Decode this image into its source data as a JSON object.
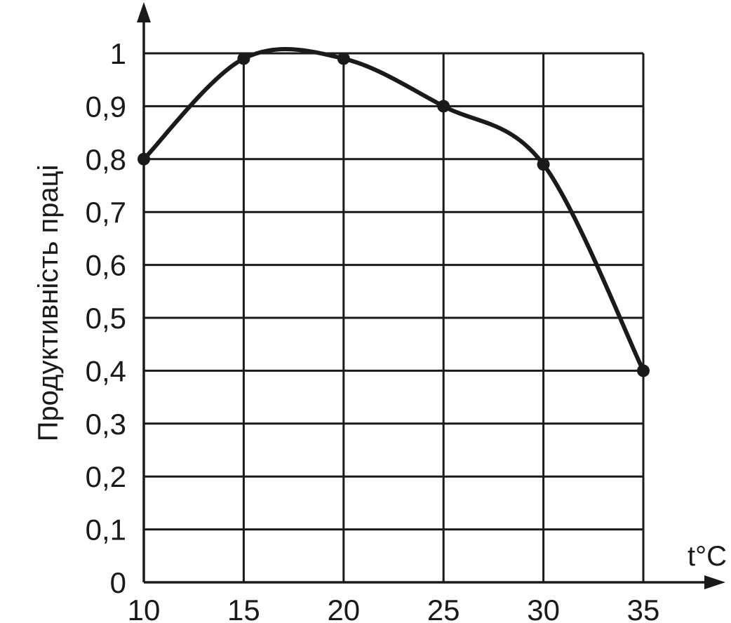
{
  "chart_data": {
    "type": "line",
    "title": "",
    "xlabel": "t°C",
    "ylabel": "Продуктивність праці",
    "x_ticks": [
      "10",
      "15",
      "20",
      "25",
      "30",
      "35"
    ],
    "y_ticks": [
      "0",
      "0,1",
      "0,2",
      "0,3",
      "0,4",
      "0,5",
      "0,6",
      "0,7",
      "0,8",
      "0,9",
      "1"
    ],
    "xlim": [
      10,
      35
    ],
    "ylim": [
      0,
      1
    ],
    "grid": true,
    "legend": "none",
    "series": [
      {
        "x": [
          10,
          15,
          20,
          25,
          30,
          35
        ],
        "y": [
          0.8,
          0.99,
          0.99,
          0.9,
          0.79,
          0.4
        ]
      }
    ],
    "colors": {
      "line": "#1a1a1a",
      "grid": "#1a1a1a",
      "text": "#1a1a1a"
    }
  }
}
